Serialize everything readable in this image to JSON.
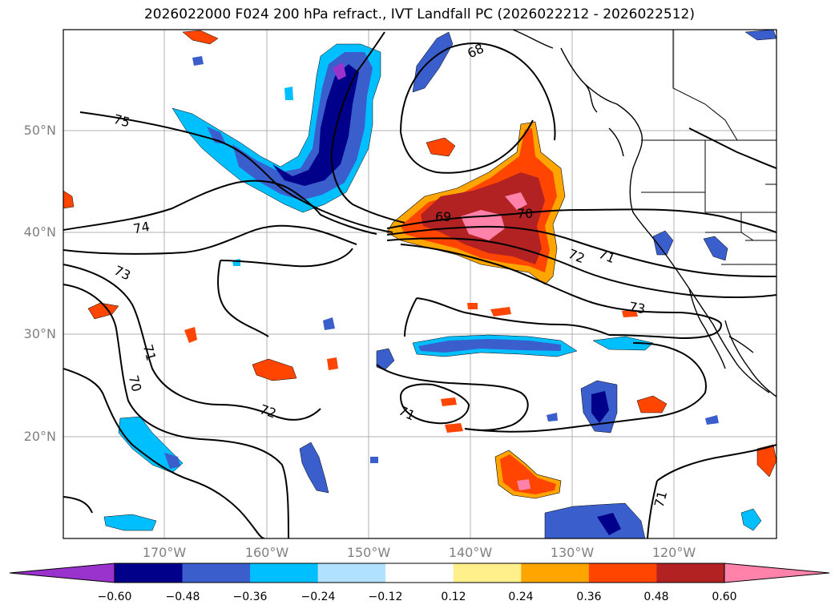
{
  "title": "2026022000 F024 200 hPa refract., IVT Landfall PC (2026022212 - 2026022512)",
  "lat_labels": [
    "50°N",
    "40°N",
    "30°N",
    "20°N"
  ],
  "lon_labels": [
    "170°W",
    "160°W",
    "150°W",
    "140°W",
    "130°W",
    "120°W"
  ],
  "contour_labels": [
    "75",
    "74",
    "73",
    "71",
    "70",
    "72",
    "71",
    "68",
    "69",
    "70",
    "72",
    "71",
    "73",
    "71"
  ],
  "colorbar": {
    "ticks": [
      "−0.60",
      "−0.48",
      "−0.36",
      "−0.24",
      "−0.12",
      "0.12",
      "0.24",
      "0.36",
      "0.48",
      "0.60"
    ],
    "colors": [
      "#9a32cd",
      "#00008b",
      "#3a5fcd",
      "#00bfff",
      "#b0e2ff",
      "#ffffff",
      "#fff08c",
      "#ffa500",
      "#ff4500",
      "#b22222",
      "#ff82ab"
    ]
  }
}
